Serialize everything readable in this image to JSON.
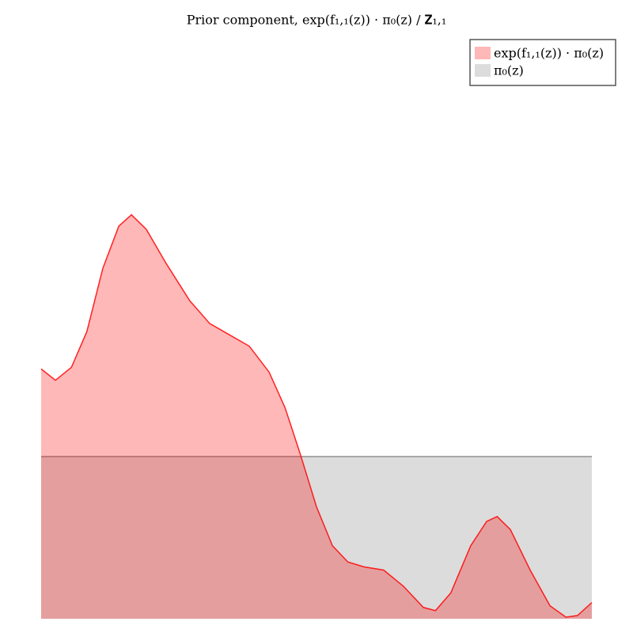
{
  "chart_data": {
    "type": "area",
    "title": "Prior component, exp(f₁,₁(z)) · π₀(z) / 𝐙₁,₁",
    "xlim": [
      0,
      1
    ],
    "ylim": [
      0,
      3.57
    ],
    "legend": "upper right",
    "series": [
      {
        "name": "π₀(z)",
        "color": "#808080",
        "x": [
          0,
          1
        ],
        "values": [
          1,
          1
        ]
      },
      {
        "name": "exp(f₁,₁(z)) · π₀(z)",
        "color": "#ff0000",
        "x": [
          0,
          0.026,
          0.055,
          0.083,
          0.112,
          0.141,
          0.164,
          0.191,
          0.227,
          0.27,
          0.306,
          0.342,
          0.378,
          0.414,
          0.443,
          0.471,
          0.5,
          0.529,
          0.557,
          0.586,
          0.622,
          0.658,
          0.694,
          0.716,
          0.744,
          0.78,
          0.809,
          0.828,
          0.852,
          0.888,
          0.924,
          0.953,
          0.974,
          1
        ],
        "values": [
          1.54,
          1.47,
          1.55,
          1.77,
          2.16,
          2.42,
          2.49,
          2.4,
          2.19,
          1.96,
          1.82,
          1.75,
          1.68,
          1.52,
          1.3,
          1.01,
          0.69,
          0.45,
          0.35,
          0.32,
          0.3,
          0.2,
          0.07,
          0.05,
          0.16,
          0.45,
          0.6,
          0.63,
          0.55,
          0.3,
          0.08,
          0.01,
          0.02,
          0.1
        ]
      }
    ]
  }
}
